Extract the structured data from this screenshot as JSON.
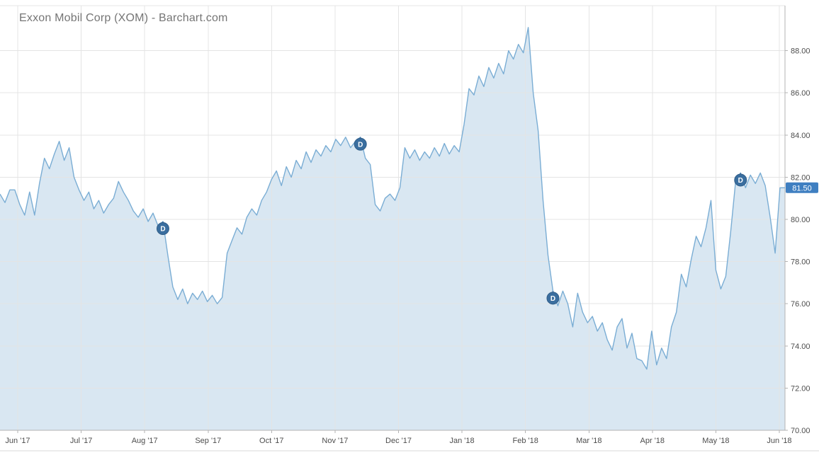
{
  "chart_data": {
    "type": "area",
    "title": "Exxon Mobil Corp (XOM) - Barchart.com",
    "x_tick_labels": [
      "Jun '17",
      "Jul '17",
      "Aug '17",
      "Sep '17",
      "Oct '17",
      "Nov '17",
      "Dec '17",
      "Jan '18",
      "Feb '18",
      "Mar '18",
      "Apr '18",
      "May '18",
      "Jun '18"
    ],
    "y_ticks": [
      70,
      72,
      74,
      76,
      78,
      80,
      82,
      84,
      86,
      88
    ],
    "y_tick_labels": [
      "70.00",
      "72.00",
      "74.00",
      "76.00",
      "78.00",
      "80.00",
      "82.00",
      "84.00",
      "86.00",
      "88.00"
    ],
    "ylim": [
      70,
      90
    ],
    "grid": true,
    "legend": "none",
    "series": [
      {
        "name": "XOM",
        "values": [
          81.2,
          80.8,
          81.4,
          81.4,
          80.7,
          80.2,
          81.3,
          80.2,
          81.7,
          82.9,
          82.4,
          83.1,
          83.7,
          82.8,
          83.4,
          82.0,
          81.4,
          80.9,
          81.3,
          80.5,
          80.9,
          80.3,
          80.7,
          81.0,
          81.8,
          81.3,
          80.9,
          80.4,
          80.1,
          80.5,
          79.9,
          80.3,
          79.7,
          79.9,
          78.3,
          76.8,
          76.2,
          76.7,
          76.0,
          76.5,
          76.2,
          76.6,
          76.1,
          76.4,
          76.0,
          76.3,
          78.4,
          79.0,
          79.6,
          79.3,
          80.1,
          80.5,
          80.2,
          80.9,
          81.3,
          81.9,
          82.3,
          81.6,
          82.5,
          82.0,
          82.8,
          82.4,
          83.2,
          82.7,
          83.3,
          83.0,
          83.5,
          83.2,
          83.8,
          83.5,
          83.9,
          83.4,
          83.7,
          83.9,
          82.9,
          82.6,
          80.7,
          80.4,
          81.0,
          81.2,
          80.9,
          81.5,
          83.4,
          82.9,
          83.3,
          82.8,
          83.2,
          82.9,
          83.4,
          83.0,
          83.6,
          83.1,
          83.5,
          83.2,
          84.5,
          86.2,
          85.9,
          86.8,
          86.3,
          87.2,
          86.7,
          87.4,
          86.9,
          88.0,
          87.6,
          88.3,
          87.9,
          89.1,
          86.0,
          84.2,
          80.9,
          78.3,
          76.6,
          75.9,
          76.6,
          76.0,
          74.9,
          76.5,
          75.6,
          75.1,
          75.4,
          74.7,
          75.1,
          74.3,
          73.8,
          74.9,
          75.3,
          73.9,
          74.6,
          73.4,
          73.3,
          72.9,
          74.7,
          73.1,
          73.9,
          73.4,
          74.9,
          75.6,
          77.4,
          76.8,
          78.1,
          79.2,
          78.7,
          79.6,
          80.9,
          77.6,
          76.7,
          77.3,
          79.4,
          81.8,
          82.2,
          81.5,
          82.1,
          81.7,
          82.2,
          81.6,
          80.1,
          78.4,
          81.5,
          81.5
        ]
      }
    ],
    "markers": [
      {
        "label": "D",
        "index": 33
      },
      {
        "label": "D",
        "index": 73
      },
      {
        "label": "D",
        "index": 112
      },
      {
        "label": "D",
        "index": 150
      }
    ],
    "last_price": 81.5,
    "last_price_label": "81.50",
    "colors": {
      "line": "#7aadd4",
      "fill": "#d9e7f2",
      "marker": "#3a6e9f",
      "marker_edge": "#315e89",
      "badge": "#3f7fc1",
      "grid": "#e4e4e4",
      "axis_line": "#b3b3b3",
      "separator": "#d9d9d9",
      "axis_text": "#4d4d4d",
      "title_text": "#757575"
    }
  }
}
